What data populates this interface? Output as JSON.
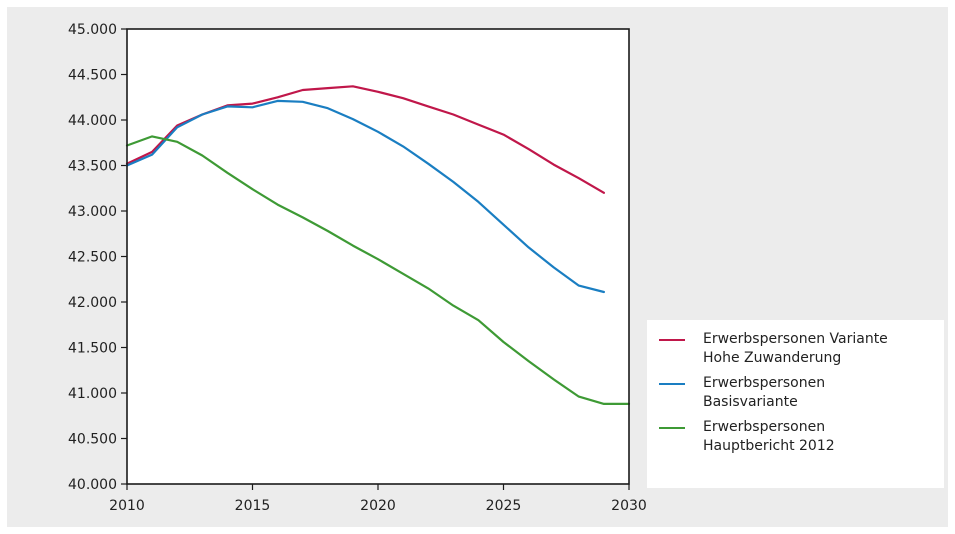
{
  "chart_data": {
    "type": "line",
    "title": "",
    "xlabel": "",
    "ylabel": "",
    "xlim": [
      2010,
      2030
    ],
    "ylim": [
      40000,
      45000
    ],
    "x_ticks": [
      "2010",
      "2015",
      "2020",
      "2025",
      "2030"
    ],
    "y_ticks": [
      "40.000",
      "40.500",
      "41.000",
      "41.500",
      "42.000",
      "42.500",
      "43.000",
      "43.500",
      "44.000",
      "44.500",
      "45.000"
    ],
    "grid": false,
    "legend_position": "right",
    "series": [
      {
        "name": "Erwerbspersonen Variante Hohe Zuwanderung",
        "name_lines": [
          "Erwerbspersonen Variante",
          "Hohe Zuwanderung"
        ],
        "color": "#c0174a",
        "x": [
          2010,
          2011,
          2012,
          2013,
          2014,
          2015,
          2016,
          2017,
          2018,
          2019,
          2020,
          2021,
          2022,
          2023,
          2024,
          2025,
          2026,
          2027,
          2028,
          2029
        ],
        "y": [
          43520,
          43650,
          43940,
          44060,
          44160,
          44180,
          44250,
          44330,
          44350,
          44370,
          44310,
          44240,
          44150,
          44060,
          43950,
          43840,
          43680,
          43510,
          43360,
          43200
        ]
      },
      {
        "name": "Erwerbspersonen Basisvariante",
        "name_lines": [
          "Erwerbspersonen",
          "Basisvariante"
        ],
        "color": "#1a7ec2",
        "x": [
          2010,
          2011,
          2012,
          2013,
          2014,
          2015,
          2016,
          2017,
          2018,
          2019,
          2020,
          2021,
          2022,
          2023,
          2024,
          2025,
          2026,
          2027,
          2028,
          2029
        ],
        "y": [
          43500,
          43620,
          43920,
          44060,
          44150,
          44140,
          44210,
          44200,
          44130,
          44010,
          43870,
          43710,
          43520,
          43320,
          43100,
          42850,
          42600,
          42380,
          42180,
          42110
        ]
      },
      {
        "name": "Erwerbspersonen Hauptbericht 2012",
        "name_lines": [
          "Erwerbspersonen",
          "Hauptbericht 2012"
        ],
        "color": "#3e9a35",
        "x": [
          2010,
          2011,
          2012,
          2013,
          2014,
          2015,
          2016,
          2017,
          2018,
          2019,
          2020,
          2021,
          2022,
          2023,
          2024,
          2025,
          2026,
          2027,
          2028,
          2029,
          2030
        ],
        "y": [
          43720,
          43820,
          43760,
          43610,
          43420,
          43240,
          43070,
          42930,
          42780,
          42620,
          42470,
          42310,
          42150,
          41960,
          41800,
          41560,
          41350,
          41150,
          40960,
          40880,
          40880
        ]
      }
    ]
  }
}
